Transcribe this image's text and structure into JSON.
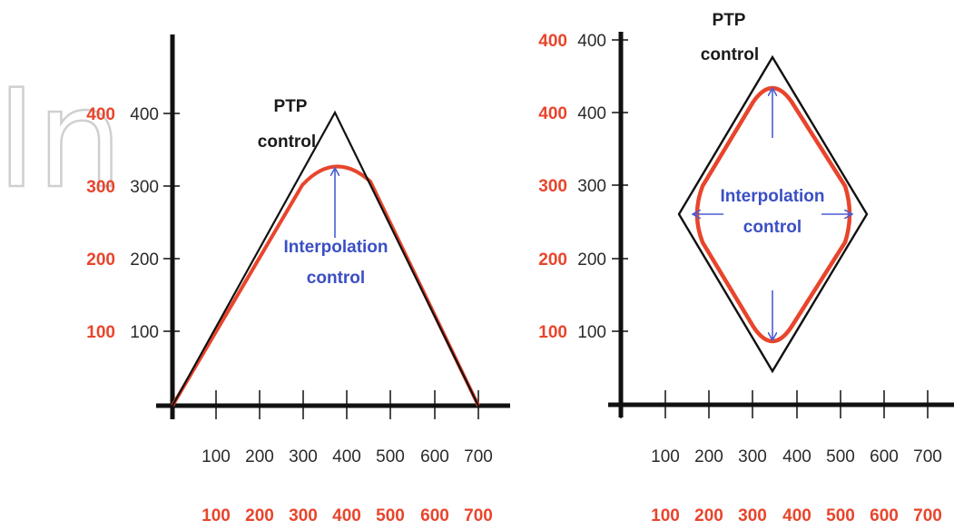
{
  "colors": {
    "axis": "#111111",
    "ptp_path": "#111111",
    "interpolation_path": "#e8452c",
    "arrow": "#4a5fd0",
    "label_blue": "#3a4fc4",
    "ticks_red": "#e8452c",
    "watermark_outline": "#cfcfcf"
  },
  "watermark": {
    "text": "In"
  },
  "left": {
    "y_ticks_black": [
      "100",
      "200",
      "300",
      "400"
    ],
    "y_ticks_red": [
      "100",
      "200",
      "300",
      "400"
    ],
    "x_ticks_black": [
      "100",
      "200",
      "300",
      "400",
      "500",
      "600",
      "700"
    ],
    "x_ticks_red": [
      "100",
      "200",
      "300",
      "400",
      "500",
      "600",
      "700"
    ],
    "ptp_label": [
      "PTP",
      "control"
    ],
    "interp_label": [
      "Interpolation",
      "control"
    ]
  },
  "right": {
    "y_ticks_black": [
      "100",
      "200",
      "300",
      "400"
    ],
    "y_ticks_red": [
      "100",
      "200",
      "300",
      "400",
      "400"
    ],
    "x_ticks_black": [
      "100",
      "200",
      "300",
      "400",
      "500",
      "600",
      "700"
    ],
    "x_ticks_red": [
      "100",
      "200",
      "300",
      "400",
      "500",
      "600",
      "700"
    ],
    "ptp_label": [
      "PTP",
      "control"
    ],
    "interp_label": [
      "Interpolation",
      "control"
    ]
  }
}
